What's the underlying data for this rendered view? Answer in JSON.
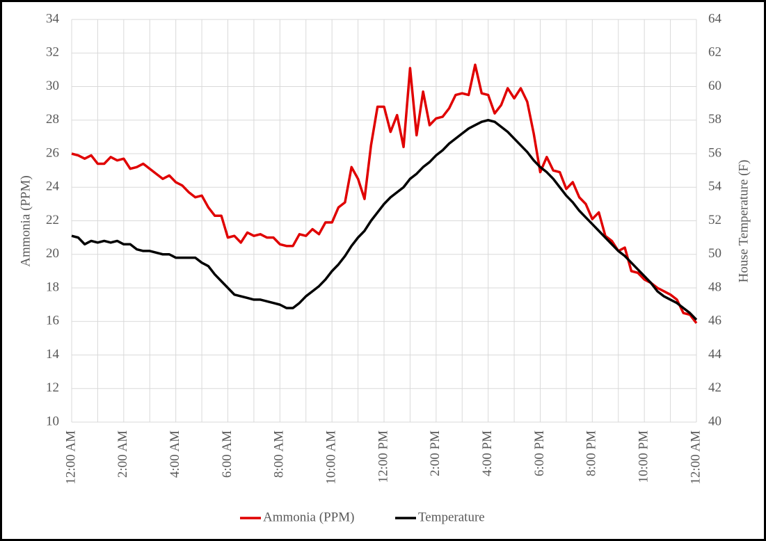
{
  "chart_data": {
    "type": "line",
    "y_label": "Ammonia (PPM)",
    "y2_label": "House Temperature (F)",
    "xlim": [
      0,
      24
    ],
    "xticks": [
      {
        "value": 0,
        "label": "12:00 AM"
      },
      {
        "value": 2,
        "label": "2:00 AM"
      },
      {
        "value": 4,
        "label": "4:00 AM"
      },
      {
        "value": 6,
        "label": "6:00 AM"
      },
      {
        "value": 8,
        "label": "8:00 AM"
      },
      {
        "value": 10,
        "label": "10:00 AM"
      },
      {
        "value": 12,
        "label": "12:00 PM"
      },
      {
        "value": 14,
        "label": "2:00 PM"
      },
      {
        "value": 16,
        "label": "4:00 PM"
      },
      {
        "value": 18,
        "label": "6:00 PM"
      },
      {
        "value": 20,
        "label": "8:00 PM"
      },
      {
        "value": 22,
        "label": "10:00 PM"
      },
      {
        "value": 24,
        "label": "12:00 AM"
      }
    ],
    "x_minor_ticks": [
      1,
      3,
      5,
      7,
      9,
      11,
      13,
      15,
      17,
      19,
      21,
      23
    ],
    "ylim": [
      10,
      34
    ],
    "yticks": [
      10,
      12,
      14,
      16,
      18,
      20,
      22,
      24,
      26,
      28,
      30,
      32,
      34
    ],
    "y2lim": [
      40,
      64
    ],
    "y2ticks": [
      40,
      42,
      44,
      46,
      48,
      50,
      52,
      54,
      56,
      58,
      60,
      62,
      64
    ],
    "grid": true,
    "legend": "bottom",
    "x": [
      0,
      0.25,
      0.5,
      0.75,
      1,
      1.25,
      1.5,
      1.75,
      2,
      2.25,
      2.5,
      2.75,
      3,
      3.25,
      3.5,
      3.75,
      4,
      4.25,
      4.5,
      4.75,
      5,
      5.25,
      5.5,
      5.75,
      6,
      6.25,
      6.5,
      6.75,
      7,
      7.25,
      7.5,
      7.75,
      8,
      8.25,
      8.5,
      8.75,
      9,
      9.25,
      9.5,
      9.75,
      10,
      10.25,
      10.5,
      10.75,
      11,
      11.25,
      11.5,
      11.75,
      12,
      12.25,
      12.5,
      12.75,
      13,
      13.25,
      13.5,
      13.75,
      14,
      14.25,
      14.5,
      14.75,
      15,
      15.25,
      15.5,
      15.75,
      16,
      16.25,
      16.5,
      16.75,
      17,
      17.25,
      17.5,
      17.75,
      18,
      18.25,
      18.5,
      18.75,
      19,
      19.25,
      19.5,
      19.75,
      20,
      20.25,
      20.5,
      20.75,
      21,
      21.25,
      21.5,
      21.75,
      22,
      22.25,
      22.5,
      22.75,
      23,
      23.25,
      23.5,
      23.75,
      24
    ],
    "series": [
      {
        "name": "Ammonia (PPM)",
        "color": "#e00000",
        "axis": "y",
        "values": [
          26.0,
          25.9,
          25.7,
          25.9,
          25.4,
          25.4,
          25.8,
          25.6,
          25.7,
          25.1,
          25.2,
          25.4,
          25.1,
          24.8,
          24.5,
          24.7,
          24.3,
          24.1,
          23.7,
          23.4,
          23.5,
          22.8,
          22.3,
          22.3,
          21.0,
          21.1,
          20.7,
          21.3,
          21.1,
          21.2,
          21.0,
          21.0,
          20.6,
          20.5,
          20.5,
          21.2,
          21.1,
          21.5,
          21.2,
          21.9,
          21.9,
          22.8,
          23.1,
          25.2,
          24.5,
          23.3,
          26.5,
          28.8,
          28.8,
          27.3,
          28.3,
          26.4,
          31.1,
          27.1,
          29.7,
          27.7,
          28.1,
          28.2,
          28.7,
          29.5,
          29.6,
          29.5,
          31.3,
          29.6,
          29.5,
          28.4,
          28.9,
          29.9,
          29.3,
          29.9,
          29.1,
          27.2,
          24.9,
          25.8,
          25.0,
          24.9,
          23.9,
          24.3,
          23.4,
          23.0,
          22.1,
          22.5,
          21.1,
          20.8,
          20.2,
          20.4,
          19.0,
          18.9,
          18.5,
          18.3,
          18.0,
          17.8,
          17.6,
          17.3,
          16.5,
          16.4,
          15.9
        ]
      },
      {
        "name": "Temperature",
        "color": "#000000",
        "axis": "y2",
        "values": [
          51.1,
          51.0,
          50.6,
          50.8,
          50.7,
          50.8,
          50.7,
          50.8,
          50.6,
          50.6,
          50.3,
          50.2,
          50.2,
          50.1,
          50.0,
          50.0,
          49.8,
          49.8,
          49.8,
          49.8,
          49.5,
          49.3,
          48.8,
          48.4,
          48.0,
          47.6,
          47.5,
          47.4,
          47.3,
          47.3,
          47.2,
          47.1,
          47.0,
          46.8,
          46.8,
          47.1,
          47.5,
          47.8,
          48.1,
          48.5,
          49.0,
          49.4,
          49.9,
          50.5,
          51.0,
          51.4,
          52.0,
          52.5,
          53.0,
          53.4,
          53.7,
          54.0,
          54.5,
          54.8,
          55.2,
          55.5,
          55.9,
          56.2,
          56.6,
          56.9,
          57.2,
          57.5,
          57.7,
          57.9,
          58.0,
          57.9,
          57.6,
          57.3,
          56.9,
          56.5,
          56.1,
          55.6,
          55.2,
          54.9,
          54.5,
          54.0,
          53.5,
          53.1,
          52.6,
          52.2,
          51.8,
          51.4,
          51.0,
          50.6,
          50.2,
          49.9,
          49.5,
          49.1,
          48.7,
          48.3,
          47.8,
          47.5,
          47.3,
          47.1,
          46.8,
          46.5,
          46.1
        ]
      }
    ]
  }
}
